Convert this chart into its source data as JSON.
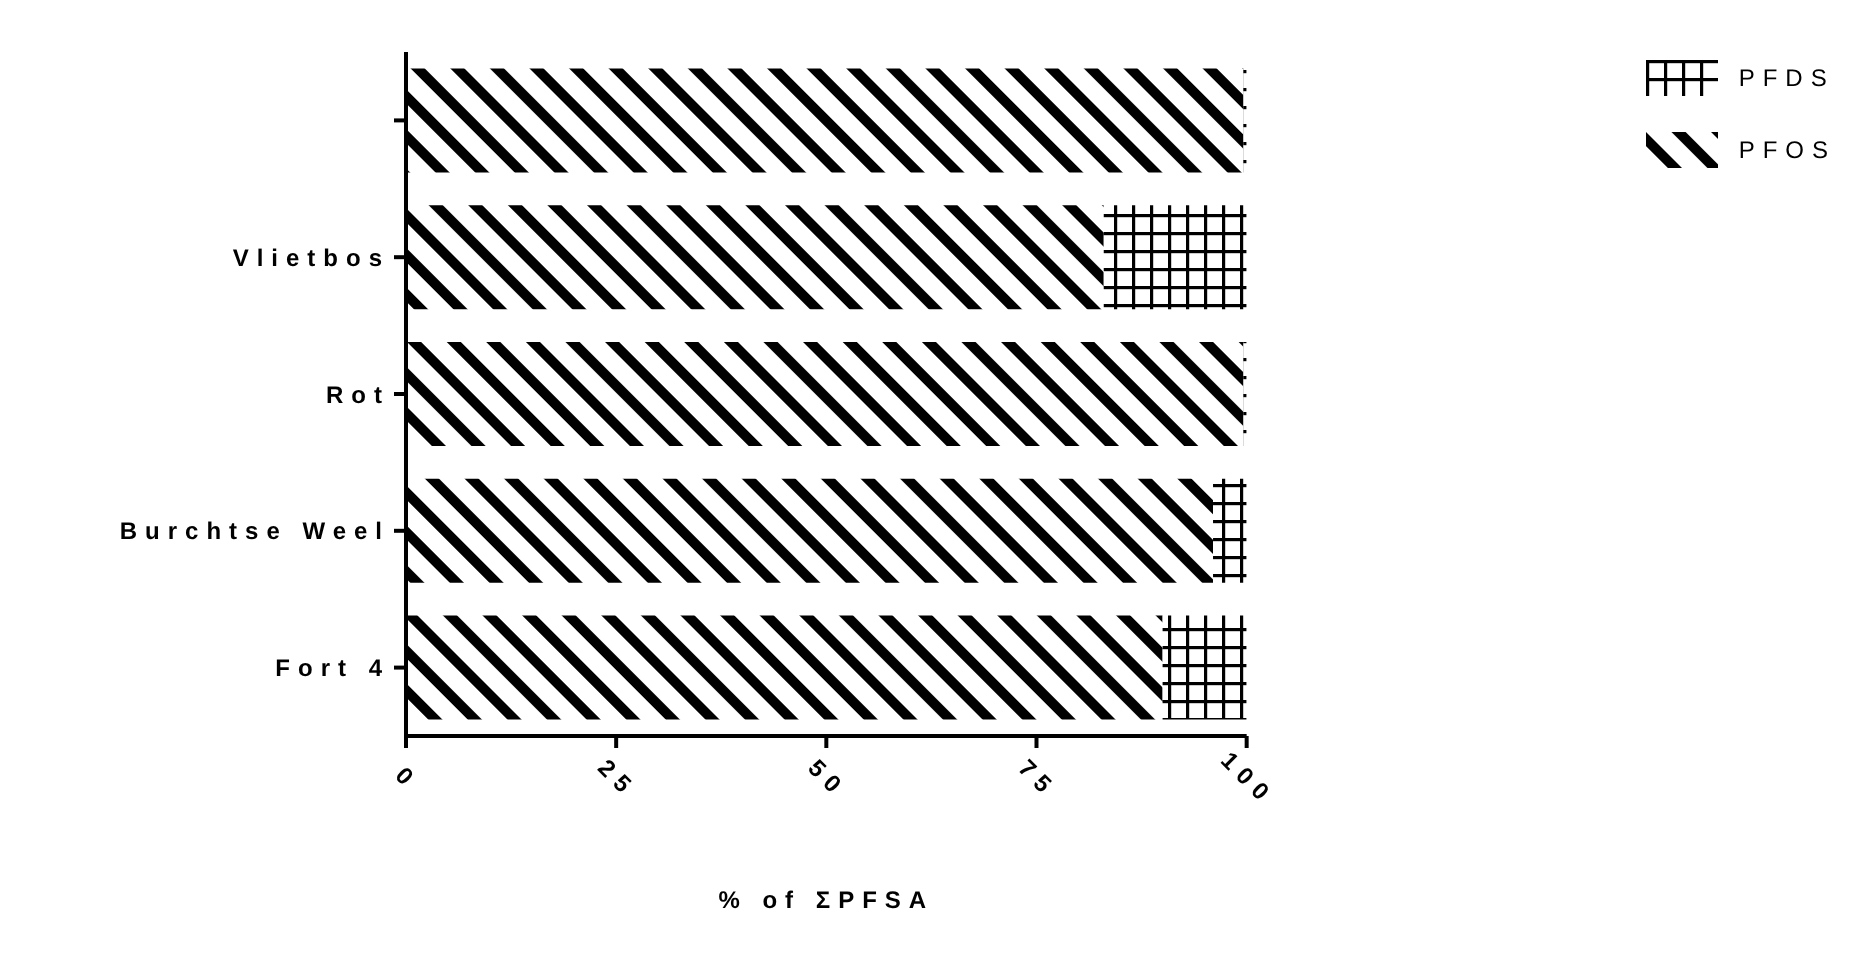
{
  "chart_data": {
    "type": "bar",
    "orientation": "horizontal",
    "stacked": true,
    "xlabel": "% of ΣPFSA",
    "categories": [
      null,
      "Vlietbos",
      "Rot",
      "Burchtse Weel",
      "Fort 4"
    ],
    "series": [
      {
        "name": "PFOS",
        "color": "#000000",
        "values": [
          99.6,
          83,
          99.6,
          96,
          90
        ]
      },
      {
        "name": "PFDS",
        "color": "#000000",
        "values": [
          0.4,
          17,
          0.4,
          4,
          10
        ]
      }
    ],
    "xlim": [
      0,
      100
    ],
    "xticks": [
      0,
      25,
      50,
      75,
      100
    ],
    "legend": "top right"
  }
}
